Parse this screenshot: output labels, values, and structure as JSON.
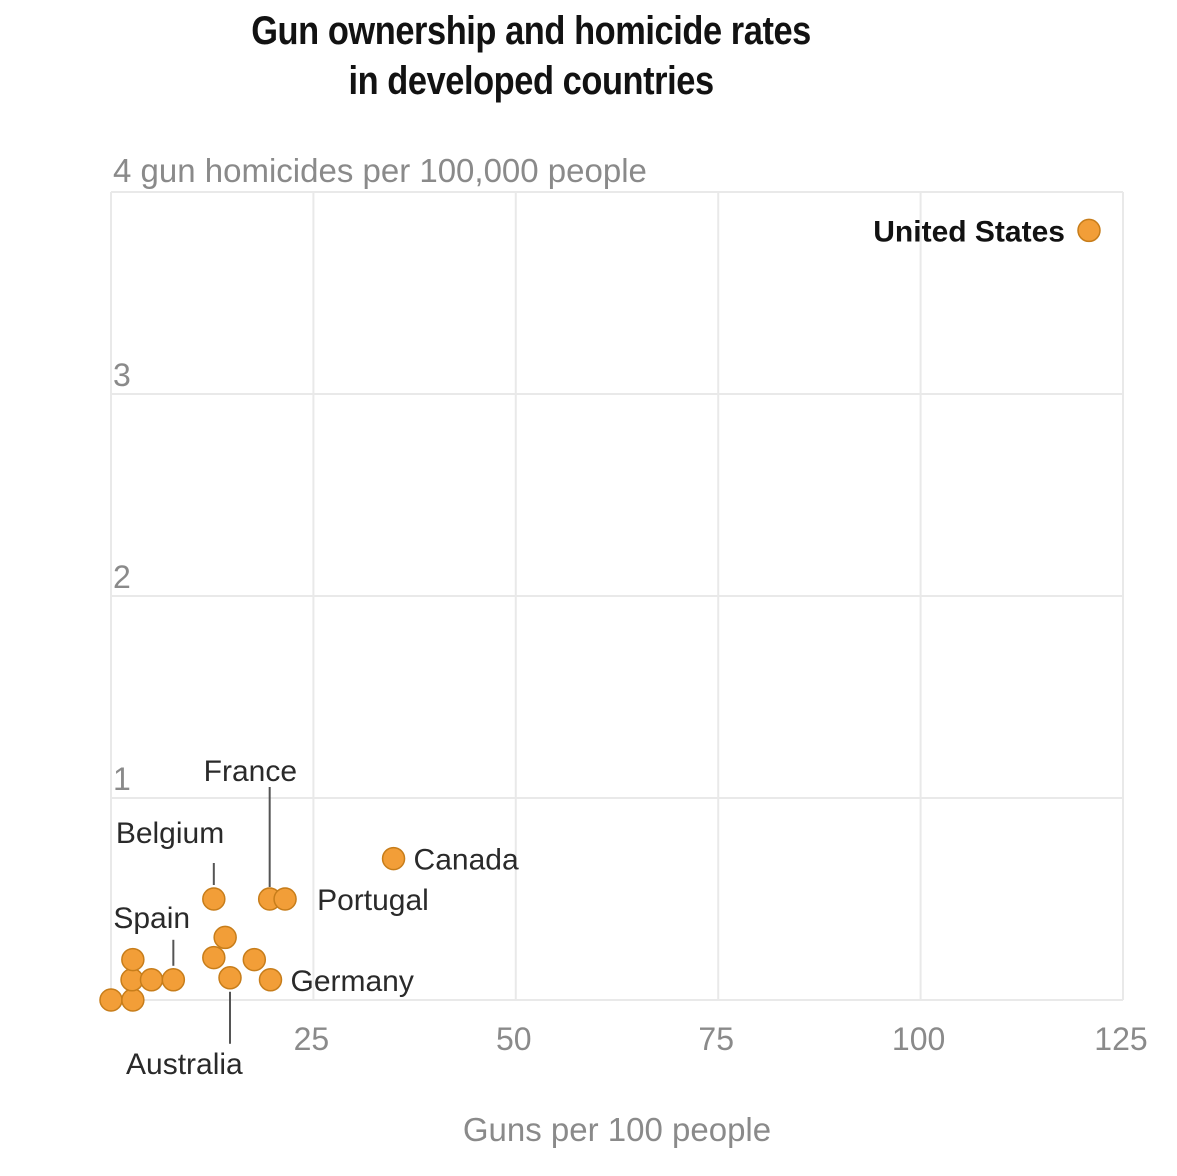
{
  "chart_data": {
    "type": "scatter",
    "title": "Gun ownership and homicide rates in developed countries",
    "title_lines": [
      "Gun ownership and homicide rates",
      "in developed countries"
    ],
    "xlabel": "Guns per 100 people",
    "ylabel": "gun homicides per 100,000 people",
    "ylabel_top_text": "4 gun homicides per 100,000 people",
    "xlim": [
      0,
      125
    ],
    "ylim": [
      0,
      4
    ],
    "x_ticks": [
      25,
      50,
      75,
      100,
      125
    ],
    "x_tick_labels": [
      "25",
      "50",
      "75",
      "100",
      "125"
    ],
    "y_ticks": [
      1,
      2,
      3,
      4
    ],
    "y_tick_labels": [
      "1",
      "2",
      "3",
      "4"
    ],
    "grid": true,
    "legend": "none",
    "dot_color": "#f29e38",
    "points": [
      {
        "label": "",
        "x": 0.0,
        "y": 0.0
      },
      {
        "label": "",
        "x": 2.7,
        "y": 0.0
      },
      {
        "label": "",
        "x": 2.6,
        "y": 0.1
      },
      {
        "label": "",
        "x": 2.7,
        "y": 0.2
      },
      {
        "label": "",
        "x": 5.0,
        "y": 0.1
      },
      {
        "label": "Spain",
        "x": 7.7,
        "y": 0.1
      },
      {
        "label": "",
        "x": 12.7,
        "y": 0.21
      },
      {
        "label": "",
        "x": 14.1,
        "y": 0.31
      },
      {
        "label": "Australia",
        "x": 14.7,
        "y": 0.11
      },
      {
        "label": "",
        "x": 17.7,
        "y": 0.2
      },
      {
        "label": "Germany",
        "x": 19.7,
        "y": 0.1
      },
      {
        "label": "Belgium",
        "x": 12.7,
        "y": 0.5
      },
      {
        "label": "France",
        "x": 19.6,
        "y": 0.5
      },
      {
        "label": "Portugal",
        "x": 21.5,
        "y": 0.5
      },
      {
        "label": "Canada",
        "x": 34.9,
        "y": 0.7
      },
      {
        "label": "United States",
        "x": 120.8,
        "y": 3.81
      }
    ]
  }
}
